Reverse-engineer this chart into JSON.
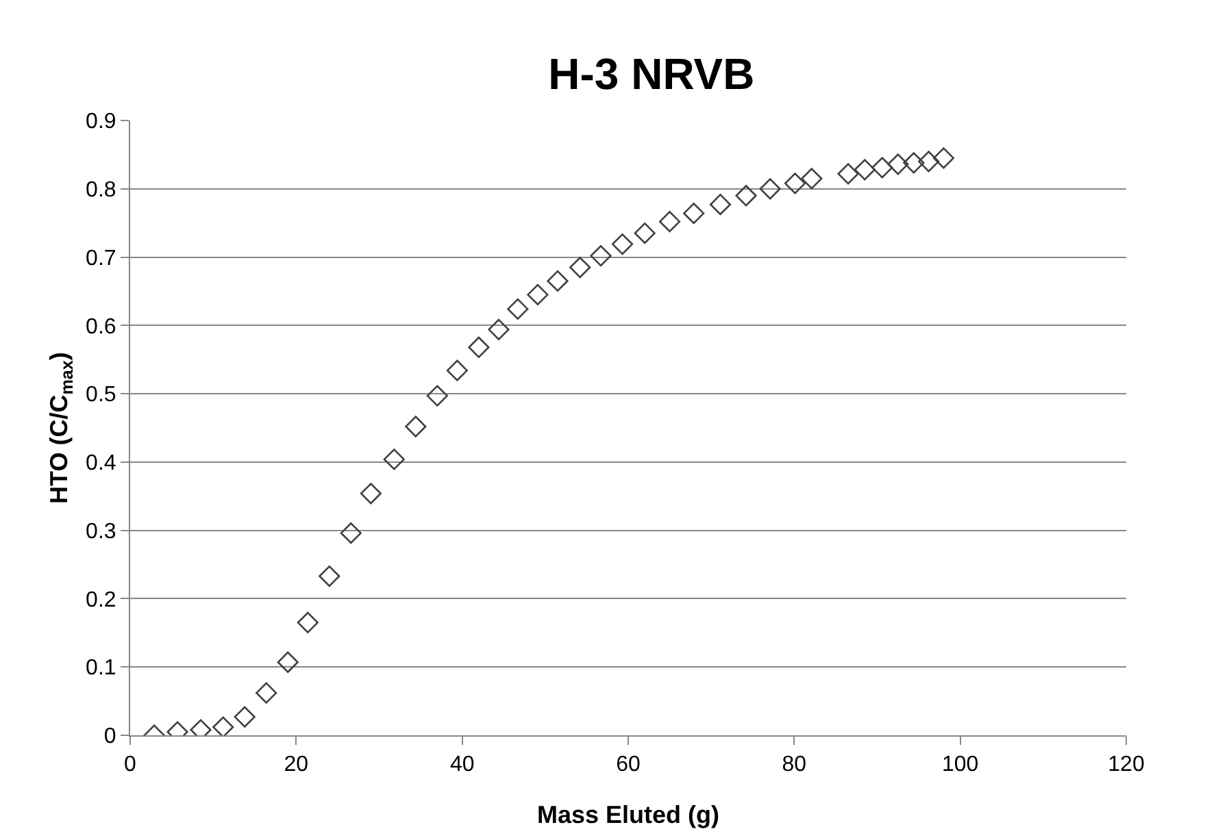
{
  "chart_data": {
    "type": "scatter",
    "title": "H-3 NRVB",
    "xlabel": "Mass Eluted (g)",
    "ylabel": "HTO (C/C$_{max}$)",
    "x": [
      2.9,
      5.7,
      8.5,
      11.2,
      13.8,
      16.4,
      19.0,
      21.4,
      24.0,
      26.6,
      29.0,
      31.8,
      34.4,
      37.0,
      39.4,
      42.0,
      44.4,
      46.7,
      49.1,
      51.5,
      54.2,
      56.7,
      59.3,
      62.0,
      65.0,
      67.9,
      71.1,
      74.2,
      77.1,
      80.1,
      82.1,
      86.5,
      88.5,
      90.6,
      92.5,
      94.4,
      96.2,
      98.0
    ],
    "series": [
      {
        "color": "#404040",
        "values": [
          0.0,
          0.005,
          0.008,
          0.012,
          0.027,
          0.062,
          0.107,
          0.165,
          0.233,
          0.296,
          0.354,
          0.404,
          0.452,
          0.497,
          0.534,
          0.568,
          0.594,
          0.624,
          0.645,
          0.665,
          0.685,
          0.702,
          0.719,
          0.735,
          0.752,
          0.764,
          0.777,
          0.79,
          0.8,
          0.808,
          0.815,
          0.822,
          0.828,
          0.831,
          0.836,
          0.838,
          0.84,
          0.845
        ]
      }
    ],
    "xlim": [
      0,
      120
    ],
    "xticks": [
      0,
      20,
      40,
      60,
      80,
      100,
      120
    ],
    "ylim": [
      0,
      0.9
    ],
    "yticks": [
      0,
      0.1,
      0.2,
      0.3,
      0.4,
      0.5,
      0.6,
      0.7,
      0.8,
      0.9
    ],
    "grid": "y",
    "marker": "diamond"
  }
}
